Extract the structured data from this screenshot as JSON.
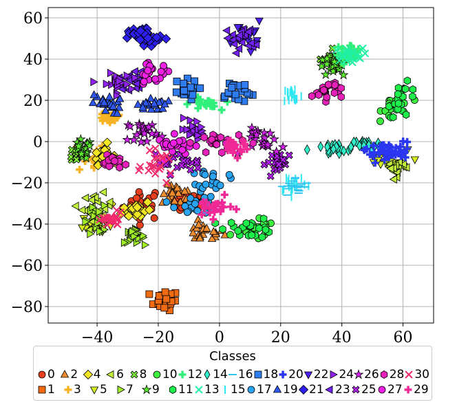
{
  "chart_data": {
    "type": "scatter",
    "title": "",
    "xlabel": "",
    "ylabel": "",
    "xlim": [
      -56,
      70
    ],
    "ylim": [
      -88,
      65
    ],
    "xticks": [
      -40,
      -20,
      0,
      20,
      40,
      60
    ],
    "yticks": [
      60,
      40,
      20,
      0,
      -20,
      -40,
      -60,
      -80
    ],
    "grid": true,
    "legend": {
      "title": "Classes",
      "placement": "bottom",
      "columns": 16
    },
    "series": [
      {
        "name": "0",
        "color": "#e8401f",
        "marker": "circle",
        "clusters": [
          [
            -25,
            -30,
            4,
            5
          ],
          [
            -10,
            -30,
            3,
            3
          ]
        ]
      },
      {
        "name": "1",
        "color": "#f06a12",
        "marker": "square",
        "clusters": [
          [
            -18,
            -77,
            3,
            3
          ]
        ]
      },
      {
        "name": "2",
        "color": "#f08c2e",
        "marker": "triangle-up",
        "clusters": [
          [
            -5,
            -44,
            4,
            3
          ],
          [
            -14,
            -26,
            3,
            3
          ]
        ]
      },
      {
        "name": "3",
        "color": "#f6b425",
        "marker": "plus",
        "clusters": [
          [
            -42,
            -8,
            3,
            5
          ],
          [
            -36,
            12,
            3,
            2
          ]
        ]
      },
      {
        "name": "4",
        "color": "#f3e623",
        "marker": "diamond",
        "clusters": [
          [
            -27,
            -33,
            3,
            3
          ],
          [
            -38,
            -6,
            2,
            3
          ]
        ]
      },
      {
        "name": "5",
        "color": "#d7ee1f",
        "marker": "triangle-down",
        "clusters": [
          [
            -40,
            -40,
            3,
            3
          ],
          [
            55,
            -8,
            4,
            3
          ]
        ]
      },
      {
        "name": "6",
        "color": "#c3f03a",
        "marker": "triangle-left",
        "clusters": [
          [
            -40,
            -32,
            3,
            4
          ],
          [
            58,
            -12,
            3,
            3
          ]
        ]
      },
      {
        "name": "7",
        "color": "#a2ef27",
        "marker": "triangle-right",
        "clusters": [
          [
            -40,
            -38,
            3,
            4
          ],
          [
            -28,
            -46,
            2,
            2
          ]
        ]
      },
      {
        "name": "8",
        "color": "#7fef38",
        "marker": "x-filled",
        "clusters": [
          [
            -46,
            -6,
            2,
            3
          ],
          [
            38,
            40,
            3,
            2
          ]
        ]
      },
      {
        "name": "9",
        "color": "#5cef2b",
        "marker": "star",
        "clusters": [
          [
            -45,
            -4,
            2,
            3
          ],
          [
            37,
            36,
            3,
            3
          ]
        ]
      },
      {
        "name": "10",
        "color": "#3ef040",
        "marker": "circle",
        "clusters": [
          [
            12,
            -43,
            4,
            3
          ],
          [
            58,
            18,
            3,
            4
          ]
        ]
      },
      {
        "name": "11",
        "color": "#1df04a",
        "marker": "hexagon",
        "clusters": [
          [
            10,
            -42,
            5,
            3
          ],
          [
            60,
            20,
            3,
            5
          ]
        ]
      },
      {
        "name": "12",
        "color": "#30f07b",
        "marker": "plus",
        "clusters": [
          [
            42,
            44,
            3,
            2
          ],
          [
            -5,
            18,
            3,
            2
          ]
        ]
      },
      {
        "name": "13",
        "color": "#21f0a4",
        "marker": "x",
        "clusters": [
          [
            42,
            42,
            3,
            2
          ]
        ]
      },
      {
        "name": "14",
        "color": "#2ff0c9",
        "marker": "thin-diamond",
        "clusters": [
          [
            37,
            -4,
            5,
            2
          ],
          [
            48,
            -2,
            3,
            2
          ]
        ]
      },
      {
        "name": "15",
        "color": "#2ee7f0",
        "marker": "vline",
        "clusters": [
          [
            24,
            22,
            2,
            3
          ],
          [
            24,
            -20,
            3,
            3
          ]
        ]
      },
      {
        "name": "16",
        "color": "#30c6f0",
        "marker": "hline",
        "clusters": [
          [
            25,
            -22,
            3,
            3
          ]
        ]
      },
      {
        "name": "17",
        "color": "#2aa3f0",
        "marker": "circle",
        "clusters": [
          [
            -8,
            -30,
            4,
            4
          ],
          [
            -2,
            -18,
            3,
            3
          ]
        ]
      },
      {
        "name": "18",
        "color": "#2f7cf0",
        "marker": "square",
        "clusters": [
          [
            5,
            24,
            4,
            4
          ],
          [
            -12,
            25,
            3,
            3
          ]
        ]
      },
      {
        "name": "19",
        "color": "#2f58f0",
        "marker": "triangle-up",
        "clusters": [
          [
            -37,
            18,
            3,
            3
          ],
          [
            -22,
            18,
            3,
            2
          ]
        ]
      },
      {
        "name": "20",
        "color": "#2a36f0",
        "marker": "plus",
        "clusters": [
          [
            52,
            -5,
            3,
            3
          ],
          [
            58,
            -5,
            3,
            3
          ]
        ]
      },
      {
        "name": "21",
        "color": "#2c1ff0",
        "marker": "diamond",
        "clusters": [
          [
            -23,
            50,
            4,
            3
          ],
          [
            -26,
            52,
            3,
            2
          ]
        ]
      },
      {
        "name": "22",
        "color": "#4e1ff0",
        "marker": "triangle-down",
        "clusters": [
          [
            9,
            52,
            3,
            4
          ]
        ]
      },
      {
        "name": "23",
        "color": "#7021f0",
        "marker": "triangle-left",
        "clusters": [
          [
            7,
            50,
            3,
            4
          ],
          [
            -28,
            30,
            3,
            3
          ]
        ]
      },
      {
        "name": "24",
        "color": "#9222f0",
        "marker": "triangle-right",
        "clusters": [
          [
            -34,
            28,
            3,
            3
          ],
          [
            -8,
            6,
            3,
            3
          ]
        ]
      },
      {
        "name": "25",
        "color": "#b41ff0",
        "marker": "x-filled",
        "clusters": [
          [
            -14,
            -10,
            5,
            3
          ],
          [
            20,
            -10,
            3,
            3
          ]
        ]
      },
      {
        "name": "26",
        "color": "#d51ff0",
        "marker": "star",
        "clusters": [
          [
            15,
            0,
            4,
            4
          ],
          [
            -25,
            5,
            3,
            3
          ]
        ]
      },
      {
        "name": "27",
        "color": "#ef1fe3",
        "marker": "circle",
        "clusters": [
          [
            -22,
            33,
            4,
            3
          ],
          [
            -14,
            -2,
            4,
            3
          ]
        ]
      },
      {
        "name": "28",
        "color": "#e521b9",
        "marker": "hexagon",
        "clusters": [
          [
            0,
            0,
            5,
            3
          ],
          [
            35,
            25,
            3,
            3
          ],
          [
            -35,
            -10,
            2,
            2
          ]
        ]
      },
      {
        "name": "29",
        "color": "#f02996",
        "marker": "plus",
        "clusters": [
          [
            -2,
            -32,
            4,
            3
          ],
          [
            5,
            -2,
            3,
            3
          ]
        ]
      },
      {
        "name": "30",
        "color": "#f02a6d",
        "marker": "x",
        "clusters": [
          [
            -20,
            -12,
            3,
            4
          ],
          [
            -35,
            -38,
            2,
            2
          ]
        ]
      }
    ]
  }
}
